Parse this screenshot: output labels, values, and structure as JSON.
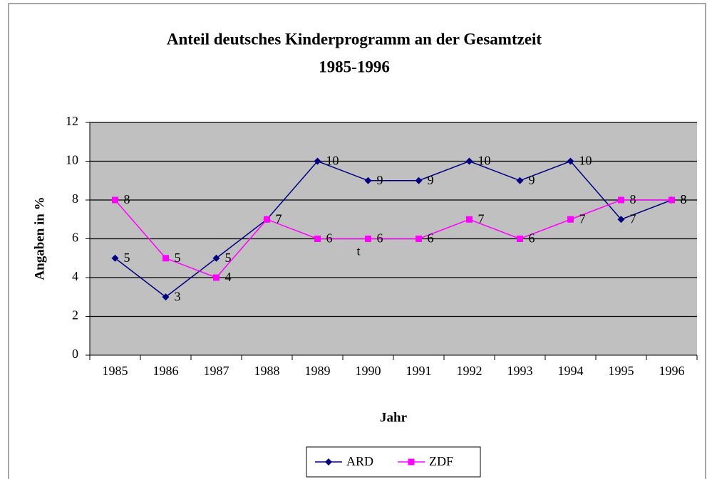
{
  "chart_data": {
    "type": "line",
    "title": "Anteil deutsches Kinderprogramm an der Gesamtzeit",
    "subtitle": "1985-1996",
    "x_label": "Jahr",
    "y_label": "Angaben in %",
    "categories": [
      "1985",
      "1986",
      "1987",
      "1988",
      "1989",
      "1990",
      "1991",
      "1992",
      "1993",
      "1994",
      "1995",
      "1996"
    ],
    "series": [
      {
        "name": "ARD",
        "color": "#000080",
        "marker": "diamond",
        "values": [
          5,
          3,
          5,
          7,
          10,
          9,
          9,
          10,
          9,
          10,
          7,
          8
        ]
      },
      {
        "name": "ZDF",
        "color": "#ff00ff",
        "marker": "square",
        "values": [
          8,
          5,
          4,
          7,
          6,
          6,
          6,
          7,
          6,
          7,
          8,
          8
        ]
      }
    ],
    "annotations": [
      "t"
    ],
    "ylim": [
      0,
      12
    ],
    "yticks": [
      0,
      2,
      4,
      6,
      8,
      10,
      12
    ],
    "grid": true,
    "legend": "bottom",
    "plot_background": "#c0c0c0"
  }
}
